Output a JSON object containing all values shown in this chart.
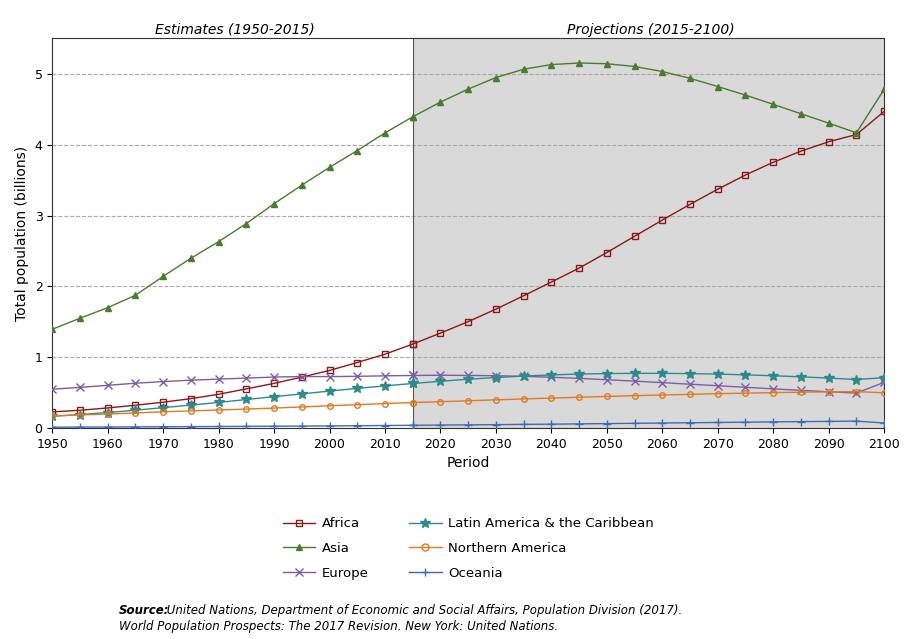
{
  "title_estimates": "Estimates (1950-2015)",
  "title_projections": "Projections (2015-2100)",
  "xlabel": "Period",
  "ylabel": "Total population (billions)",
  "ylim": [
    0,
    5.5
  ],
  "yticks": [
    0,
    1,
    2,
    3,
    4,
    5
  ],
  "background_color": "#ffffff",
  "projection_bg": "#d9d9d9",
  "projection_start": 2015,
  "years": [
    1950,
    1955,
    1960,
    1965,
    1970,
    1975,
    1980,
    1985,
    1990,
    1995,
    2000,
    2005,
    2010,
    2015,
    2020,
    2025,
    2030,
    2035,
    2040,
    2045,
    2050,
    2055,
    2060,
    2065,
    2070,
    2075,
    2080,
    2085,
    2090,
    2095,
    2100
  ],
  "Africa": [
    0.229,
    0.252,
    0.285,
    0.323,
    0.366,
    0.416,
    0.478,
    0.554,
    0.632,
    0.72,
    0.814,
    0.926,
    1.044,
    1.186,
    1.341,
    1.503,
    1.679,
    1.868,
    2.062,
    2.258,
    2.478,
    2.707,
    2.936,
    3.158,
    3.371,
    3.572,
    3.751,
    3.908,
    4.041,
    4.143,
    4.468
  ],
  "Asia": [
    1.395,
    1.551,
    1.7,
    1.875,
    2.142,
    2.397,
    2.632,
    2.887,
    3.167,
    3.429,
    3.68,
    3.917,
    4.166,
    4.393,
    4.601,
    4.784,
    4.947,
    5.064,
    5.13,
    5.152,
    5.142,
    5.103,
    5.032,
    4.936,
    4.82,
    4.699,
    4.569,
    4.436,
    4.304,
    4.167,
    4.78
  ],
  "Europe": [
    0.549,
    0.575,
    0.604,
    0.634,
    0.657,
    0.676,
    0.692,
    0.706,
    0.721,
    0.728,
    0.727,
    0.731,
    0.738,
    0.743,
    0.746,
    0.744,
    0.739,
    0.731,
    0.718,
    0.702,
    0.683,
    0.663,
    0.642,
    0.62,
    0.598,
    0.576,
    0.554,
    0.533,
    0.513,
    0.495,
    0.646
  ],
  "LatinAmerica": [
    0.168,
    0.192,
    0.22,
    0.253,
    0.289,
    0.325,
    0.363,
    0.404,
    0.444,
    0.483,
    0.523,
    0.561,
    0.596,
    0.63,
    0.661,
    0.69,
    0.714,
    0.735,
    0.751,
    0.763,
    0.77,
    0.773,
    0.773,
    0.769,
    0.762,
    0.752,
    0.739,
    0.724,
    0.706,
    0.686,
    0.712
  ],
  "NorthernAmerica": [
    0.172,
    0.186,
    0.199,
    0.214,
    0.231,
    0.243,
    0.256,
    0.269,
    0.283,
    0.299,
    0.316,
    0.331,
    0.347,
    0.361,
    0.373,
    0.386,
    0.399,
    0.412,
    0.424,
    0.436,
    0.447,
    0.458,
    0.468,
    0.477,
    0.486,
    0.494,
    0.501,
    0.507,
    0.512,
    0.515,
    0.499
  ],
  "Oceania": [
    0.013,
    0.015,
    0.016,
    0.018,
    0.02,
    0.021,
    0.023,
    0.025,
    0.027,
    0.029,
    0.031,
    0.034,
    0.037,
    0.04,
    0.043,
    0.046,
    0.049,
    0.053,
    0.056,
    0.06,
    0.064,
    0.068,
    0.072,
    0.076,
    0.08,
    0.084,
    0.088,
    0.092,
    0.095,
    0.099,
    0.072
  ],
  "colors": {
    "Africa": "#8B1A1A",
    "Asia": "#4a7c2f",
    "Europe": "#7b5ea7",
    "LatinAmerica": "#2e8b8b",
    "NorthernAmerica": "#e07b20",
    "Oceania": "#4169b0"
  },
  "markers": {
    "Africa": "s",
    "Asia": "^",
    "Europe": "x",
    "LatinAmerica": "*",
    "NorthernAmerica": "o",
    "Oceania": "+"
  },
  "labels": {
    "Africa": "Africa",
    "Asia": "Asia",
    "Europe": "Europe",
    "LatinAmerica": "Latin America & the Caribbean",
    "NorthernAmerica": "Northern America",
    "Oceania": "Oceania"
  },
  "source_bold": "Source:",
  "source_normal": " United Nations, Department of Economic and Social Affairs, Population Division (2017).",
  "source_italic_line2": "World Population Prospects: The 2017 Revision",
  "source_normal_line2": ". New York: United Nations.",
  "xticks": [
    1950,
    1960,
    1970,
    1980,
    1990,
    2000,
    2010,
    2020,
    2030,
    2040,
    2050,
    2060,
    2070,
    2080,
    2090,
    2100
  ]
}
